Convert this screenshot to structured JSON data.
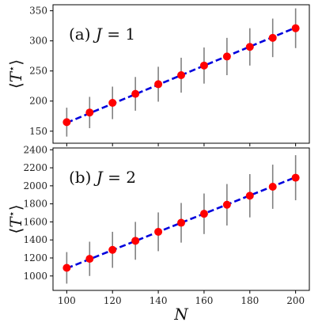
{
  "chart_data": [
    {
      "type": "line",
      "label": "(a)",
      "label_symbol": "J",
      "label_value": "= 1",
      "ylabel_symbol": "T",
      "ylabel_mark": "⋆",
      "xlabel": "",
      "xlim": [
        94,
        206
      ],
      "ylim": [
        130,
        360
      ],
      "yticks": [
        150,
        200,
        250,
        300,
        350
      ],
      "x": [
        100,
        110,
        120,
        130,
        140,
        150,
        160,
        170,
        180,
        190,
        200
      ],
      "y": [
        165,
        181,
        197,
        212,
        228,
        243,
        259,
        274,
        290,
        305,
        321
      ],
      "yerr": [
        24,
        26,
        27,
        28,
        29,
        29,
        30,
        31,
        31,
        32,
        33
      ],
      "fit_line": {
        "x": [
          100,
          200
        ],
        "y": [
          164,
          322
        ]
      },
      "marker_color": "#ff0000",
      "errorbar_color": "#808080",
      "line_color": "#0000dd"
    },
    {
      "type": "line",
      "label": "(b)",
      "label_symbol": "J",
      "label_value": "= 2",
      "ylabel_symbol": "T",
      "ylabel_mark": "⋆",
      "xlabel": "N",
      "xlim": [
        94,
        206
      ],
      "ylim": [
        840,
        2420
      ],
      "yticks": [
        1000,
        1200,
        1400,
        1600,
        1800,
        2000,
        2200,
        2400
      ],
      "xticks": [
        100,
        120,
        140,
        160,
        180,
        200
      ],
      "x": [
        100,
        110,
        120,
        130,
        140,
        150,
        160,
        170,
        180,
        190,
        200
      ],
      "y": [
        1090,
        1190,
        1290,
        1390,
        1490,
        1590,
        1690,
        1790,
        1890,
        1990,
        2090
      ],
      "yerr": [
        175,
        190,
        200,
        210,
        215,
        220,
        225,
        230,
        240,
        245,
        250
      ],
      "fit_line": {
        "x": [
          100,
          200
        ],
        "y": [
          1085,
          2095
        ]
      },
      "marker_color": "#ff0000",
      "errorbar_color": "#808080",
      "line_color": "#0000dd"
    }
  ]
}
